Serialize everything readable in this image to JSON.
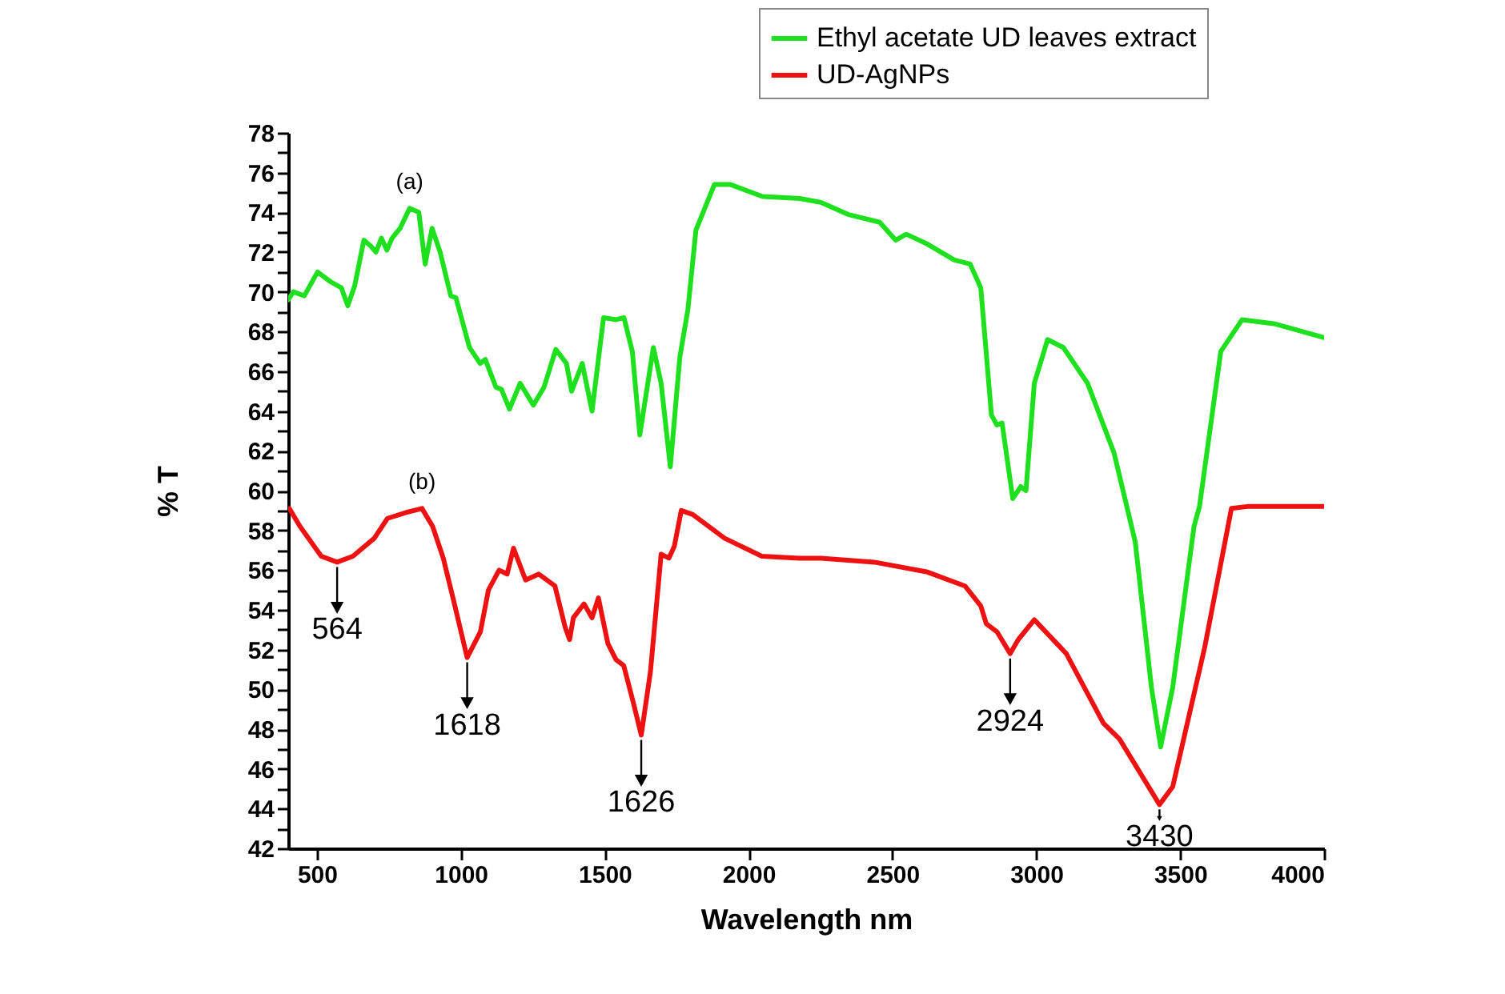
{
  "chart_data": {
    "type": "line",
    "xlabel": "Wavelength nm",
    "ylabel": "% T",
    "xlim": [
      400,
      4000
    ],
    "xticks": [
      500,
      1000,
      1500,
      2000,
      2500,
      3000,
      3500,
      4000
    ],
    "ylim": [
      42,
      78
    ],
    "yticks": [
      42,
      {
        "value": 43,
        "label": null
      },
      44,
      {
        "value": 45,
        "label": null
      },
      46,
      {
        "value": 47,
        "label": null
      },
      48,
      {
        "value": 49,
        "label": null
      },
      50,
      {
        "value": 51,
        "label": null
      },
      52,
      {
        "value": 53,
        "label": null
      },
      54,
      {
        "value": 55,
        "label": null
      },
      56,
      {
        "value": 57,
        "label": null
      },
      58,
      {
        "value": 59,
        "label": null
      },
      60,
      {
        "value": 61,
        "label": null
      },
      62,
      {
        "value": 63,
        "label": null
      },
      64,
      {
        "value": 65,
        "label": null
      },
      66,
      {
        "value": 67,
        "label": null
      },
      68,
      {
        "value": 69,
        "label": null
      },
      70,
      {
        "value": 71,
        "label": null
      },
      72,
      {
        "value": 73,
        "label": null
      },
      74,
      {
        "value": 75,
        "label": null
      },
      76,
      {
        "value": 77,
        "label": null
      },
      78
    ],
    "grid": false,
    "legend": "top right",
    "series": [
      {
        "name": "Ethyl acetate UD leaves extract",
        "color": "#1ee01e",
        "x": [
          400,
          418,
          456,
          502,
          548,
          585,
          607,
          631,
          663,
          687,
          705,
          724,
          743,
          761,
          789,
          822,
          854,
          876,
          900,
          928,
          965,
          983,
          1030,
          1067,
          1085,
          1122,
          1141,
          1169,
          1206,
          1252,
          1289,
          1330,
          1367,
          1385,
          1422,
          1456,
          1496,
          1539,
          1567,
          1596,
          1622,
          1669,
          1696,
          1728,
          1761,
          1789,
          1817,
          1881,
          1937,
          2048,
          2178,
          2252,
          2345,
          2456,
          2511,
          2548,
          2622,
          2715,
          2770,
          2807,
          2844,
          2863,
          2881,
          2918,
          2946,
          2964,
          2993,
          3039,
          3094,
          3178,
          3270,
          3344,
          3400,
          3432,
          3474,
          3548,
          3567,
          3641,
          3715,
          3826,
          4000
        ],
        "values": [
          69.6,
          70.0,
          69.8,
          71.0,
          70.5,
          70.2,
          69.3,
          70.3,
          72.6,
          72.3,
          72.0,
          72.7,
          72.1,
          72.7,
          73.2,
          74.2,
          74.0,
          71.4,
          73.2,
          72.0,
          69.8,
          69.7,
          67.2,
          66.4,
          66.6,
          65.2,
          65.1,
          64.1,
          65.4,
          64.3,
          65.2,
          67.1,
          66.4,
          65.0,
          66.4,
          64.0,
          68.7,
          68.6,
          68.7,
          67.0,
          62.8,
          67.2,
          65.4,
          61.2,
          66.7,
          69.1,
          73.1,
          75.4,
          75.4,
          74.8,
          74.7,
          74.5,
          73.9,
          73.5,
          72.6,
          72.9,
          72.4,
          71.6,
          71.4,
          70.2,
          63.8,
          63.3,
          63.4,
          59.6,
          60.2,
          60.0,
          65.4,
          67.6,
          67.2,
          65.4,
          61.9,
          57.4,
          50.1,
          47.1,
          50.1,
          58.2,
          59.2,
          67.0,
          68.6,
          68.4,
          67.7
        ]
      },
      {
        "name": "UD-AgNPs",
        "color": "#ee1111",
        "x": [
          404,
          441,
          515,
          570,
          625,
          699,
          745,
          810,
          865,
          902,
          939,
          976,
          1022,
          1068,
          1096,
          1133,
          1161,
          1183,
          1225,
          1271,
          1327,
          1363,
          1378,
          1391,
          1428,
          1456,
          1478,
          1511,
          1539,
          1566,
          1600,
          1627,
          1659,
          1696,
          1723,
          1742,
          1766,
          1806,
          1917,
          2046,
          2175,
          2252,
          2437,
          2622,
          2752,
          2807,
          2826,
          2863,
          2909,
          2937,
          2993,
          3104,
          3233,
          3289,
          3428,
          3474,
          3585,
          3678,
          3733,
          4000
        ],
        "values": [
          59.1,
          58.2,
          56.7,
          56.4,
          56.7,
          57.6,
          58.6,
          58.9,
          59.1,
          58.2,
          56.6,
          54.4,
          51.6,
          52.9,
          55.0,
          56.0,
          55.8,
          57.1,
          55.5,
          55.8,
          55.2,
          53.1,
          52.5,
          53.6,
          54.3,
          53.6,
          54.6,
          52.3,
          51.5,
          51.2,
          49.3,
          47.7,
          50.9,
          56.8,
          56.6,
          57.2,
          59.0,
          58.8,
          57.6,
          56.7,
          56.6,
          56.6,
          56.4,
          55.9,
          55.2,
          54.2,
          53.3,
          52.9,
          51.8,
          52.5,
          53.5,
          51.8,
          48.3,
          47.5,
          44.2,
          45.1,
          52.1,
          59.1,
          59.2,
          59.2
        ]
      }
    ],
    "annotations": [
      "(a)",
      "(b)",
      {
        "text": "564",
        "x": 570,
        "y": 56.4
      },
      {
        "text": "1618",
        "x": 1022,
        "y": 51.6
      },
      {
        "text": "1626",
        "x": 1627,
        "y": 47.7
      },
      {
        "text": "2924",
        "x": 2909,
        "y": 51.8
      },
      {
        "text": "3430",
        "x": 3428,
        "y": 44.2
      }
    ]
  }
}
